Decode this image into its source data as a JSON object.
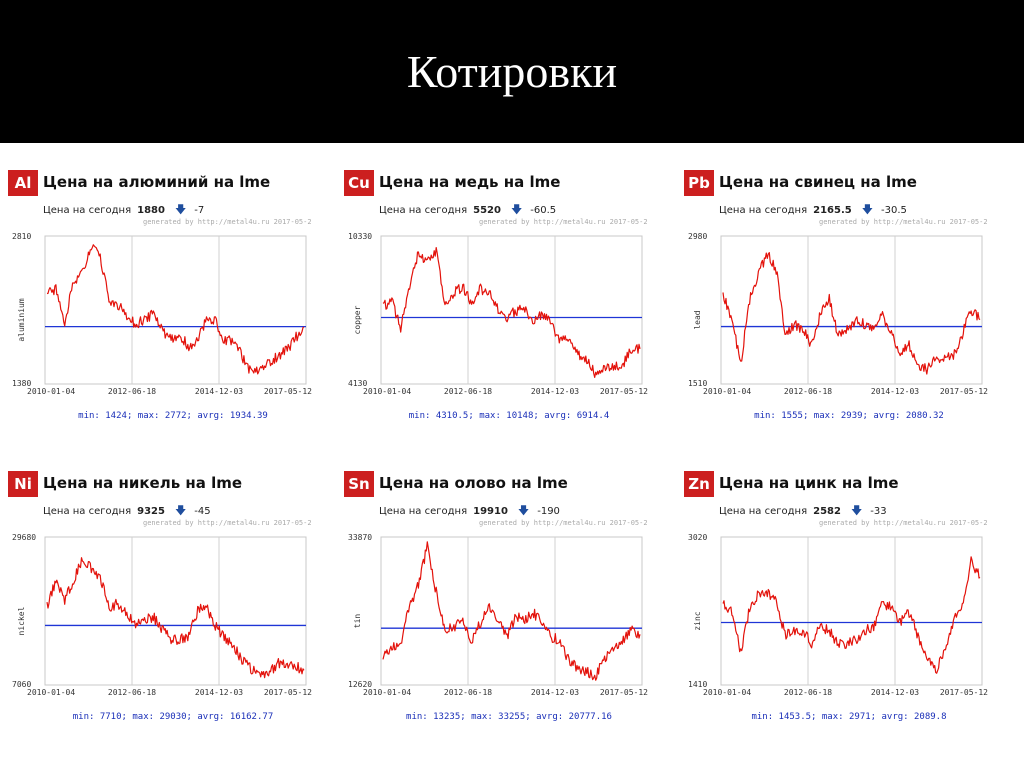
{
  "slide": {
    "title": "Котировки"
  },
  "colors": {
    "badge": "#cc1f1f",
    "price_line": "#e3120b",
    "average_line": "#1f35d6",
    "header_bg": "#000000"
  },
  "today_label": "Цена на сегодня",
  "generated_by": "generated by http://metal4u.ru 2017-05-2",
  "down_arrow_icon": "arrow-down-icon",
  "charts": [
    {
      "symbol": "Al",
      "title": "Цена на алюминий на lme",
      "today": "1880",
      "change": "-7",
      "stats": "min: 1424; max: 2772; avrg: 1934.39",
      "chart_data": {
        "type": "line",
        "ylabel": "aluminium",
        "ylim": [
          1380,
          2810
        ],
        "y_ticks": [
          "2810",
          "1380"
        ],
        "x_ticks": [
          "2010-01-04",
          "2012-06-18",
          "2014-12-03",
          "2017-05-12"
        ],
        "x": [
          "2010-01",
          "2010-04",
          "2010-07",
          "2010-10",
          "2011-01",
          "2011-04",
          "2011-07",
          "2011-10",
          "2012-01",
          "2012-04",
          "2012-07",
          "2012-10",
          "2013-01",
          "2013-04",
          "2013-07",
          "2013-10",
          "2014-01",
          "2014-04",
          "2014-07",
          "2014-10",
          "2015-01",
          "2015-04",
          "2015-07",
          "2015-10",
          "2016-01",
          "2016-04",
          "2016-07",
          "2016-10",
          "2017-01",
          "2017-05"
        ],
        "series": [
          {
            "values": [
              2250,
              2300,
              1990,
              2350,
              2450,
              2710,
              2600,
              2200,
              2150,
              2050,
              1950,
              2010,
              2050,
              1900,
              1800,
              1850,
              1740,
              1820,
              2000,
              2000,
              1800,
              1810,
              1650,
              1500,
              1500,
              1580,
              1640,
              1700,
              1820,
              1930
            ]
          }
        ],
        "average": 1934.39
      }
    },
    {
      "symbol": "Cu",
      "title": "Цена на медь на lme",
      "today": "5520",
      "change": "-60.5",
      "stats": "min: 4310.5; max: 10148; avrg: 6914.4",
      "chart_data": {
        "type": "line",
        "ylabel": "copper",
        "ylim": [
          4130,
          10330
        ],
        "y_ticks": [
          "10330",
          "4130"
        ],
        "x_ticks": [
          "2010-01-04",
          "2012-06-18",
          "2014-12-03",
          "2017-05-12"
        ],
        "x": [
          "2010-01",
          "2010-04",
          "2010-07",
          "2010-10",
          "2011-01",
          "2011-04",
          "2011-07",
          "2011-10",
          "2012-01",
          "2012-04",
          "2012-07",
          "2012-10",
          "2013-01",
          "2013-04",
          "2013-07",
          "2013-10",
          "2014-01",
          "2014-04",
          "2014-07",
          "2014-10",
          "2015-01",
          "2015-04",
          "2015-07",
          "2015-10",
          "2016-01",
          "2016-04",
          "2016-07",
          "2016-10",
          "2017-01",
          "2017-05"
        ],
        "series": [
          {
            "values": [
              7400,
              7600,
              6500,
              8300,
              9600,
              9300,
              9700,
              7400,
              8000,
              8200,
              7500,
              8100,
              8000,
              7300,
              6900,
              7200,
              7300,
              6700,
              7100,
              6600,
              6000,
              6100,
              5400,
              5200,
              4500,
              4900,
              4800,
              4900,
              5600,
              5600
            ]
          }
        ],
        "average": 6914.4
      }
    },
    {
      "symbol": "Pb",
      "title": "Цена на свинец на lme",
      "today": "2165.5",
      "change": "-30.5",
      "stats": "min: 1555; max: 2939; avrg: 2080.32",
      "chart_data": {
        "type": "line",
        "ylabel": "lead",
        "ylim": [
          1510,
          2980
        ],
        "y_ticks": [
          "2980",
          "1510"
        ],
        "x_ticks": [
          "2010-01-04",
          "2012-06-18",
          "2014-12-03",
          "2017-05-12"
        ],
        "x": [
          "2010-01",
          "2010-04",
          "2010-07",
          "2010-10",
          "2011-01",
          "2011-04",
          "2011-07",
          "2011-10",
          "2012-01",
          "2012-04",
          "2012-07",
          "2012-10",
          "2013-01",
          "2013-04",
          "2013-07",
          "2013-10",
          "2014-01",
          "2014-04",
          "2014-07",
          "2014-10",
          "2015-01",
          "2015-04",
          "2015-07",
          "2015-10",
          "2016-01",
          "2016-04",
          "2016-07",
          "2016-10",
          "2017-01",
          "2017-05"
        ],
        "series": [
          {
            "values": [
              2400,
              2150,
              1700,
              2350,
              2600,
              2800,
              2650,
              2000,
              2100,
              2050,
              1900,
              2200,
              2350,
              2000,
              2050,
              2150,
              2100,
              2050,
              2200,
              2000,
              1800,
              1900,
              1700,
              1650,
              1750,
              1750,
              1800,
              2000,
              2250,
              2150
            ]
          }
        ],
        "average": 2080.32
      }
    },
    {
      "symbol": "Ni",
      "title": "Цена на никель на lme",
      "today": "9325",
      "change": "-45",
      "stats": "min: 7710; max: 29030; avrg: 16162.77",
      "chart_data": {
        "type": "line",
        "ylabel": "nickel",
        "ylim": [
          7060,
          29680
        ],
        "y_ticks": [
          "29680",
          "7060"
        ],
        "x_ticks": [
          "2010-01-04",
          "2012-06-18",
          "2014-12-03",
          "2017-05-12"
        ],
        "x": [
          "2010-01",
          "2010-04",
          "2010-07",
          "2010-10",
          "2011-01",
          "2011-04",
          "2011-07",
          "2011-10",
          "2012-01",
          "2012-04",
          "2012-07",
          "2012-10",
          "2013-01",
          "2013-04",
          "2013-07",
          "2013-10",
          "2014-01",
          "2014-04",
          "2014-07",
          "2014-10",
          "2015-01",
          "2015-04",
          "2015-07",
          "2015-10",
          "2016-01",
          "2016-04",
          "2016-07",
          "2016-10",
          "2017-01",
          "2017-05"
        ],
        "series": [
          {
            "values": [
              19000,
              23000,
              20000,
              23000,
              26500,
              25000,
              23500,
              19000,
              19500,
              18000,
              16000,
              17000,
              17500,
              15500,
              14000,
              14000,
              14500,
              18500,
              19000,
              16000,
              14500,
              13000,
              11000,
              9500,
              8500,
              8700,
              10300,
              10500,
              10000,
              9300
            ]
          }
        ],
        "average": 16162.77
      }
    },
    {
      "symbol": "Sn",
      "title": "Цена на олово на lme",
      "today": "19910",
      "change": "-190",
      "stats": "min: 13235; max: 33255; avrg: 20777.16",
      "chart_data": {
        "type": "line",
        "ylabel": "tin",
        "ylim": [
          12620,
          33870
        ],
        "y_ticks": [
          "33870",
          "12620"
        ],
        "x_ticks": [
          "2010-01-04",
          "2012-06-18",
          "2014-12-03",
          "2017-05-12"
        ],
        "x": [
          "2010-01",
          "2010-04",
          "2010-07",
          "2010-10",
          "2011-01",
          "2011-04",
          "2011-07",
          "2011-10",
          "2012-01",
          "2012-04",
          "2012-07",
          "2012-10",
          "2013-01",
          "2013-04",
          "2013-07",
          "2013-10",
          "2014-01",
          "2014-04",
          "2014-07",
          "2014-10",
          "2015-01",
          "2015-04",
          "2015-07",
          "2015-10",
          "2016-01",
          "2016-04",
          "2016-07",
          "2016-10",
          "2017-01",
          "2017-05"
        ],
        "series": [
          {
            "values": [
              17000,
              18000,
              18500,
              24000,
              27000,
              32500,
              26000,
              20500,
              21000,
              22000,
              19000,
              21500,
              24000,
              22000,
              19500,
              22500,
              22000,
              23000,
              21500,
              19500,
              19000,
              16000,
              15000,
              14500,
              13800,
              16500,
              17500,
              19000,
              20500,
              19900
            ]
          }
        ],
        "average": 20777.16
      }
    },
    {
      "symbol": "Zn",
      "title": "Цена на цинк на lme",
      "today": "2582",
      "change": "-33",
      "stats": "min: 1453.5; max: 2971; avrg: 2089.8",
      "chart_data": {
        "type": "line",
        "ylabel": "zinc",
        "ylim": [
          1410,
          3020
        ],
        "y_ticks": [
          "3020",
          "1410"
        ],
        "x_ticks": [
          "2010-01-04",
          "2012-06-18",
          "2014-12-03",
          "2017-05-12"
        ],
        "x": [
          "2010-01",
          "2010-04",
          "2010-07",
          "2010-10",
          "2011-01",
          "2011-04",
          "2011-07",
          "2011-10",
          "2012-01",
          "2012-04",
          "2012-07",
          "2012-10",
          "2013-01",
          "2013-04",
          "2013-07",
          "2013-10",
          "2014-01",
          "2014-04",
          "2014-07",
          "2014-10",
          "2015-01",
          "2015-04",
          "2015-07",
          "2015-10",
          "2016-01",
          "2016-04",
          "2016-07",
          "2016-10",
          "2017-01",
          "2017-05"
        ],
        "series": [
          {
            "values": [
              2300,
              2200,
              1750,
              2250,
              2400,
              2400,
              2350,
              1950,
              2000,
              2000,
              1850,
              2050,
              2000,
              1850,
              1850,
              1900,
              2000,
              2050,
              2300,
              2250,
              2100,
              2200,
              1950,
              1700,
              1550,
              1800,
              2100,
              2300,
              2750,
              2580
            ]
          }
        ],
        "average": 2089.8
      }
    }
  ]
}
